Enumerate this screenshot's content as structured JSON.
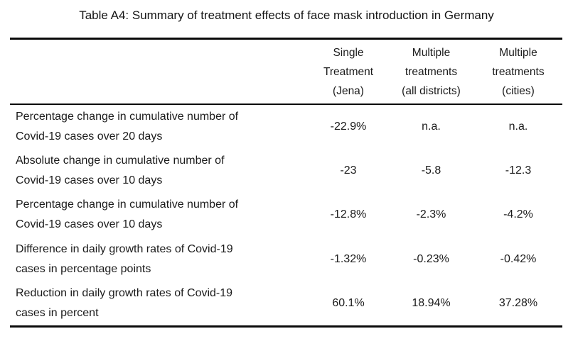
{
  "title": "Table A4: Summary of treatment effects of face mask introduction in Germany",
  "table": {
    "columns": [
      {
        "line1": "Single",
        "line2": "Treatment",
        "line3": "(Jena)"
      },
      {
        "line1": "Multiple",
        "line2": "treatments",
        "line3": "(all districts)"
      },
      {
        "line1": "Multiple",
        "line2": "treatments",
        "line3": "(cities)"
      }
    ],
    "rows": [
      {
        "label_line1": "Percentage change in cumulative number of",
        "label_line2": "Covid-19 cases over 20 days",
        "values": [
          "-22.9%",
          "n.a.",
          "n.a."
        ]
      },
      {
        "label_line1": "Absolute change in cumulative number of",
        "label_line2": "Covid-19 cases over 10 days",
        "values": [
          "-23",
          "-5.8",
          "-12.3"
        ]
      },
      {
        "label_line1": "Percentage change in cumulative number of",
        "label_line2": "Covid-19 cases over 10 days",
        "values": [
          "-12.8%",
          "-2.3%",
          "-4.2%"
        ]
      },
      {
        "label_line1": "Difference in daily growth rates of Covid-19",
        "label_line2": "cases in percentage points",
        "values": [
          "-1.32%",
          "-0.23%",
          "-0.42%"
        ]
      },
      {
        "label_line1": "Reduction in daily growth rates of Covid-19",
        "label_line2": "cases in percent",
        "values": [
          "60.1%",
          "18.94%",
          "37.28%"
        ]
      }
    ],
    "rule_color": "#0a0a0a"
  }
}
